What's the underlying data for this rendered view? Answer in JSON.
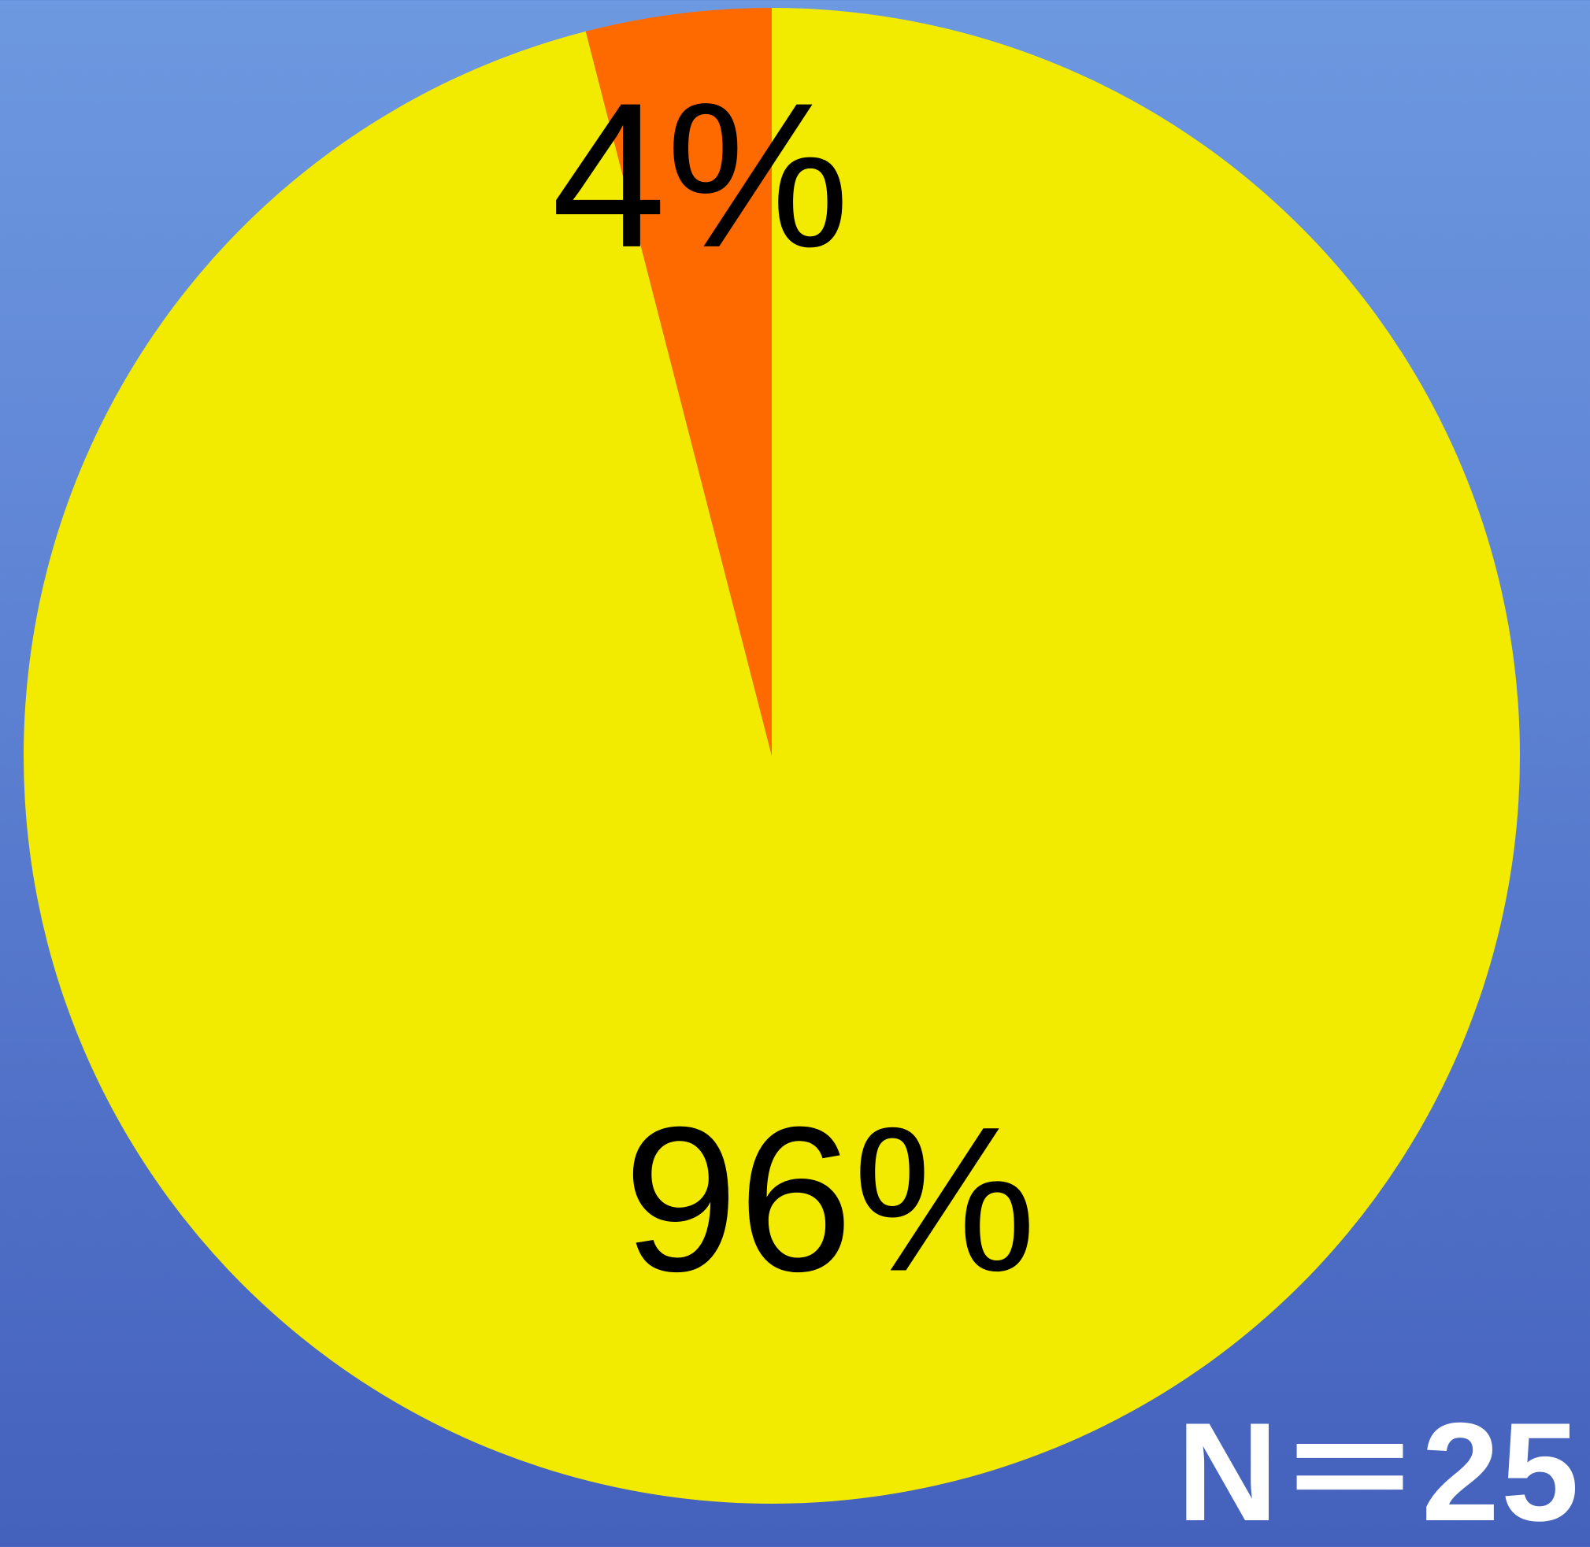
{
  "chart_data": {
    "type": "pie",
    "title": "",
    "slices": [
      {
        "label": "96%",
        "value": 96,
        "color": "#f2eb00"
      },
      {
        "label": "4%",
        "value": 4,
        "color": "#ff6a00"
      }
    ],
    "start": "top",
    "direction": "clockwise"
  },
  "sample_size_label": "N＝25",
  "colors": {
    "background_top": "#6d99e0",
    "background_bottom": "#4461bc",
    "label_text": "#000000",
    "annotation_text": "#ffffff"
  }
}
